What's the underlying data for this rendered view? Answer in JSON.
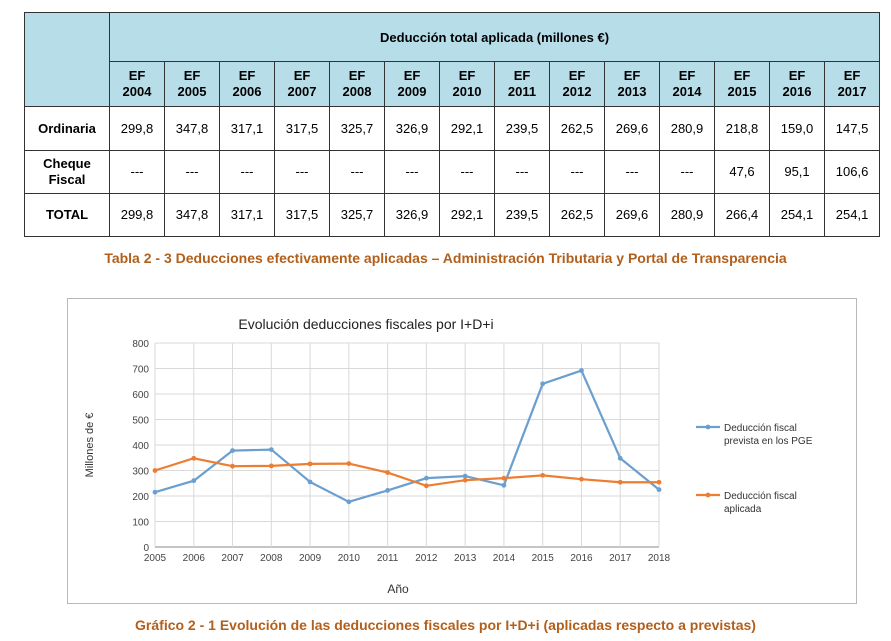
{
  "table": {
    "header_title": "Deducción total aplicada (millones €)",
    "years": [
      [
        "EF",
        "2004"
      ],
      [
        "EF",
        "2005"
      ],
      [
        "EF",
        "2006"
      ],
      [
        "EF",
        "2007"
      ],
      [
        "EF",
        "2008"
      ],
      [
        "EF",
        "2009"
      ],
      [
        "EF",
        "2010"
      ],
      [
        "EF",
        "2011"
      ],
      [
        "EF",
        "2012"
      ],
      [
        "EF",
        "2013"
      ],
      [
        "EF",
        "2014"
      ],
      [
        "EF",
        "2015"
      ],
      [
        "EF",
        "2016"
      ],
      [
        "EF",
        "2017"
      ]
    ],
    "rows": [
      {
        "label": [
          "Ordinaria"
        ],
        "values": [
          "299,8",
          "347,8",
          "317,1",
          "317,5",
          "325,7",
          "326,9",
          "292,1",
          "239,5",
          "262,5",
          "269,6",
          "280,9",
          "218,8",
          "159,0",
          "147,5"
        ]
      },
      {
        "label": [
          "Cheque",
          "Fiscal"
        ],
        "values": [
          "---",
          "---",
          "---",
          "---",
          "---",
          "---",
          "---",
          "---",
          "---",
          "---",
          "---",
          "47,6",
          "95,1",
          "106,6"
        ]
      },
      {
        "label": [
          "TOTAL"
        ],
        "values": [
          "299,8",
          "347,8",
          "317,1",
          "317,5",
          "325,7",
          "326,9",
          "292,1",
          "239,5",
          "262,5",
          "269,6",
          "280,9",
          "266,4",
          "254,1",
          "254,1"
        ]
      }
    ]
  },
  "caption_table": "Tabla 2 - 3  Deducciones efectivamente aplicadas – Administración Tributaria y Portal de Transparencia",
  "caption_chart": "Gráfico 2 - 1  Evolución de las deducciones fiscales por I+D+i (aplicadas respecto a previstas)",
  "chart_data": {
    "type": "line",
    "title": "Evolución deducciones fiscales por I+D+i",
    "xlabel": "Año",
    "ylabel": "Millones de €",
    "x": [
      2005,
      2006,
      2007,
      2008,
      2009,
      2010,
      2011,
      2012,
      2013,
      2014,
      2015,
      2016,
      2017,
      2018
    ],
    "ylim": [
      0,
      800
    ],
    "yticks": [
      0,
      100,
      200,
      300,
      400,
      500,
      600,
      700,
      800
    ],
    "grid": true,
    "legend": "right",
    "series": [
      {
        "name": [
          "Deducción fiscal",
          "prevista en los PGE"
        ],
        "color": "#6a9fcf",
        "values": [
          215,
          260,
          378,
          382,
          255,
          177,
          222,
          270,
          278,
          242,
          640,
          692,
          348,
          225
        ]
      },
      {
        "name": [
          "Deducción fiscal",
          "aplicada"
        ],
        "color": "#ed7d31",
        "values": [
          300,
          348,
          317,
          318,
          326,
          327,
          292,
          240,
          262,
          270,
          281,
          266,
          254,
          254
        ]
      }
    ]
  }
}
